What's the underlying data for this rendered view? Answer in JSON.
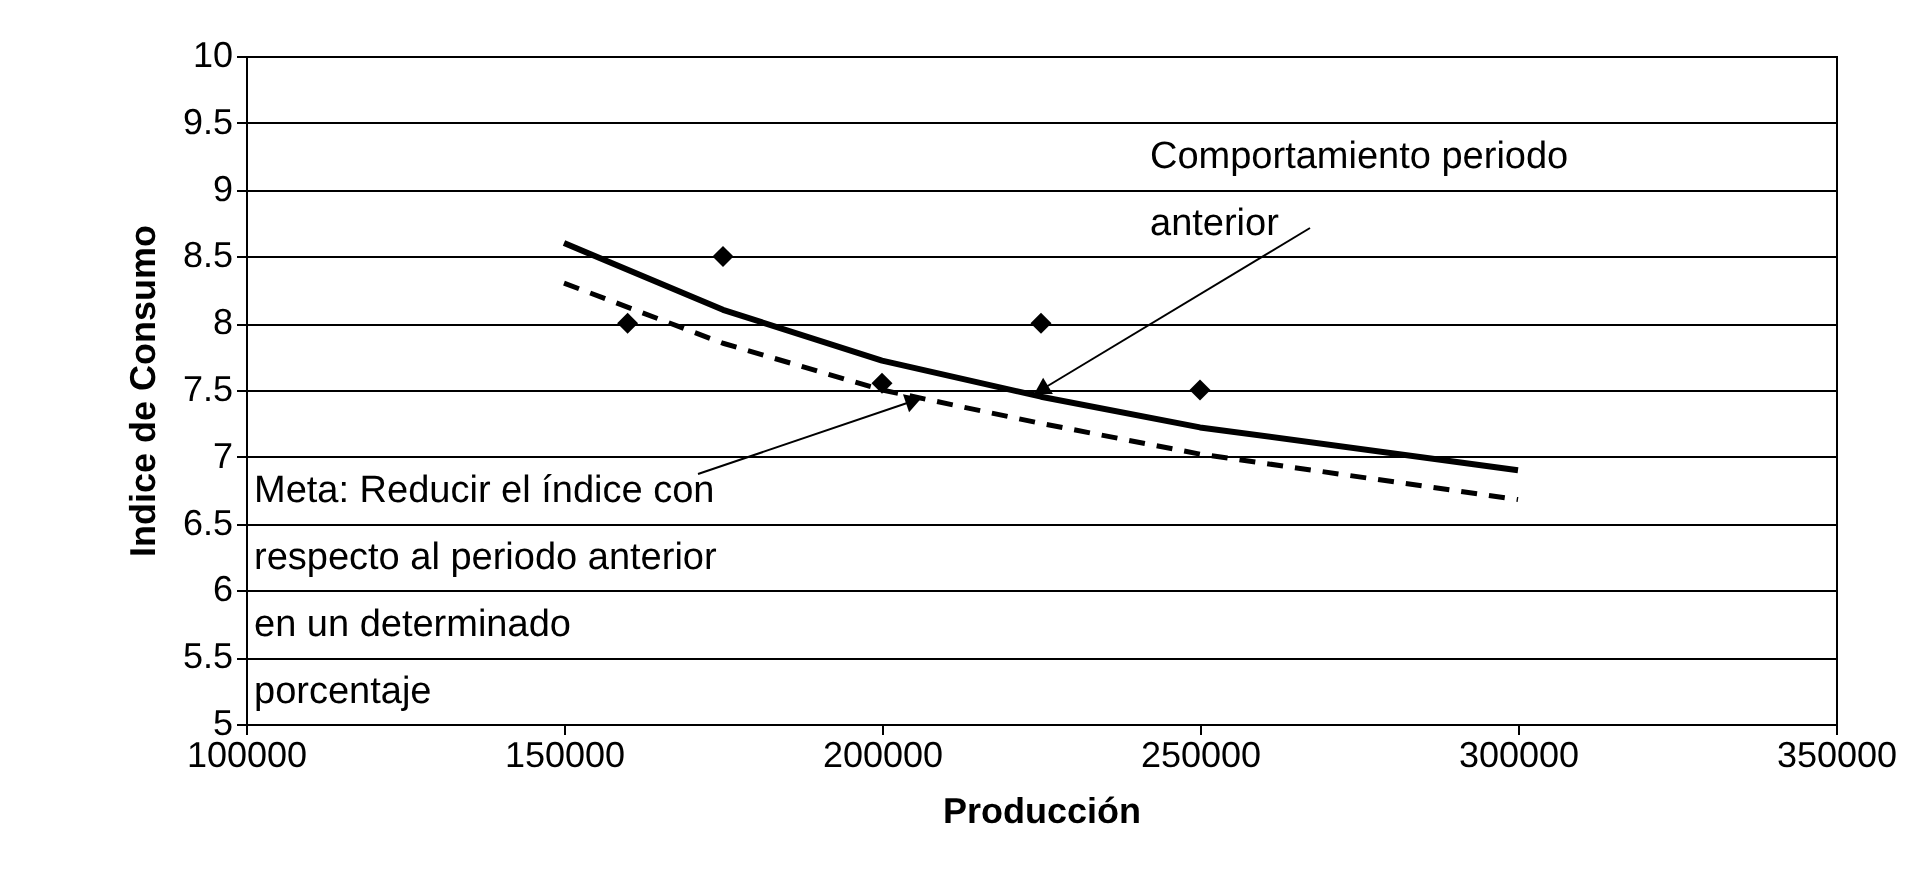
{
  "chart_data": {
    "type": "line",
    "xlabel": "Producción",
    "ylabel": "Indice de Consumo",
    "x": [
      150000,
      175000,
      200000,
      225000,
      250000,
      300000
    ],
    "series": [
      {
        "type": "line",
        "color": "#000000",
        "line_style": "solid",
        "marker": "none",
        "values": [
          8.6,
          8.1,
          7.72,
          7.45,
          7.22,
          6.9
        ]
      },
      {
        "type": "line",
        "color": "#000000",
        "line_style": "dashed",
        "marker": "none",
        "values": [
          8.3,
          7.85,
          7.5,
          7.25,
          7.02,
          6.68
        ]
      },
      {
        "type": "scatter",
        "color": "#000000",
        "marker": "diamond",
        "x": [
          160000,
          175000,
          200000,
          225000,
          250000
        ],
        "values": [
          8.0,
          8.5,
          7.55,
          8.0,
          7.5
        ]
      }
    ],
    "xlim": [
      100000,
      350000
    ],
    "xticks": [
      100000,
      150000,
      200000,
      250000,
      300000,
      350000
    ],
    "ylim": [
      5,
      10
    ],
    "yticks": [
      5,
      5.5,
      6,
      6.5,
      7,
      7.5,
      8,
      8.5,
      9,
      9.5,
      10
    ],
    "grid": "y",
    "annotations": [
      {
        "text": "Comportamiento periodo\nanterior",
        "x": 225000,
        "y": 7.5
      },
      {
        "text": "Meta:    Reducir el índice con\nrespecto al periodo anterior\nen un determinado\nporcentaje",
        "x": 205000,
        "y": 7.42
      }
    ]
  }
}
